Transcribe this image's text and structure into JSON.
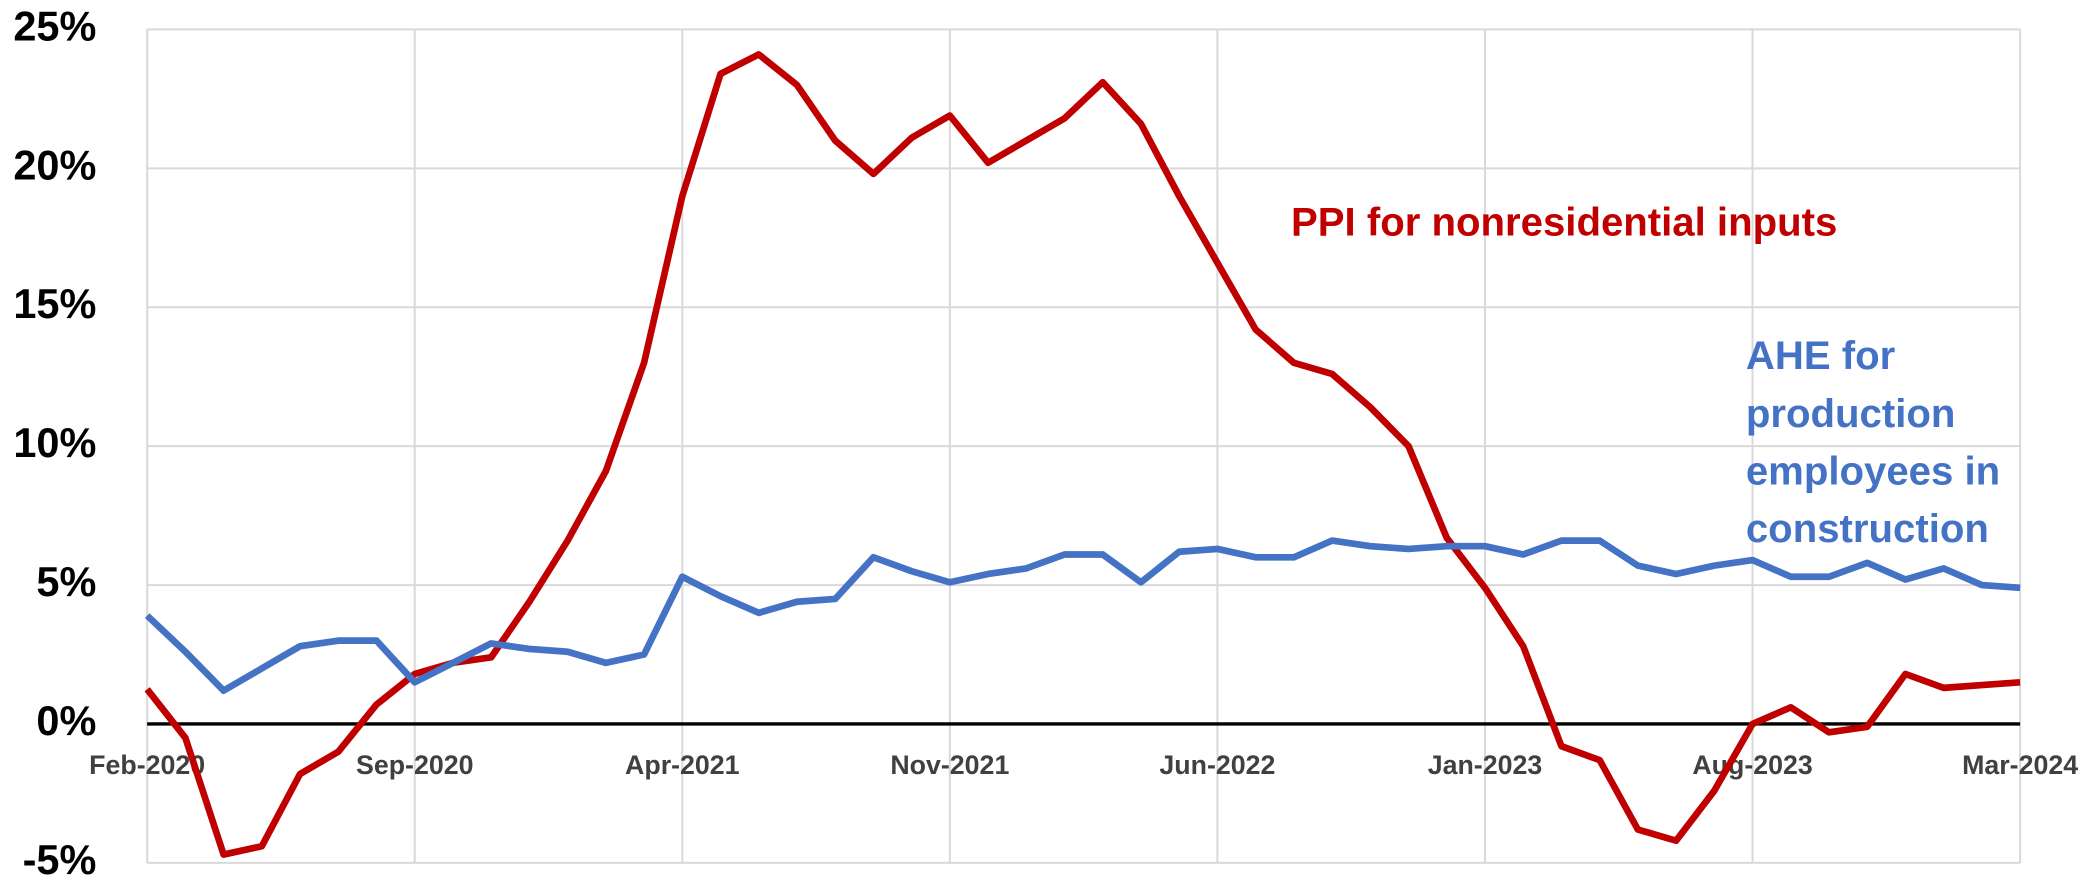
{
  "chart_data": {
    "type": "line",
    "categories": [
      "Feb-2020",
      null,
      null,
      null,
      null,
      null,
      null,
      "Sep-2020",
      null,
      null,
      null,
      null,
      null,
      null,
      "Apr-2021",
      null,
      null,
      null,
      null,
      null,
      null,
      "Nov-2021",
      null,
      null,
      null,
      null,
      null,
      null,
      "Jun-2022",
      null,
      null,
      null,
      null,
      null,
      null,
      "Jan-2023",
      null,
      null,
      null,
      null,
      null,
      null,
      "Aug-2023",
      null,
      null,
      null,
      null,
      null,
      null,
      "Mar-2024"
    ],
    "series": [
      {
        "name": "PPI for nonresidential inputs",
        "color": "#c00000",
        "values": [
          1.25,
          -0.5,
          -4.7,
          -4.4,
          -1.8,
          -1.0,
          0.7,
          1.8,
          2.2,
          2.4,
          4.4,
          6.6,
          9.1,
          13.0,
          19.0,
          23.4,
          24.1,
          23.0,
          21.0,
          19.8,
          21.1,
          21.9,
          20.2,
          21.0,
          21.8,
          23.1,
          21.6,
          19.0,
          16.6,
          14.2,
          13.0,
          12.6,
          11.4,
          10.0,
          6.7,
          4.9,
          2.8,
          -0.8,
          -1.3,
          -3.8,
          -4.2,
          -2.4,
          0.0,
          0.6,
          -0.3,
          -0.1,
          1.8,
          1.3,
          1.4,
          1.5
        ]
      },
      {
        "name": "AHE for production employees in construction",
        "color": "#4472c4",
        "values": [
          3.9,
          2.6,
          1.2,
          2.0,
          2.8,
          3.0,
          3.0,
          1.5,
          2.2,
          2.9,
          2.7,
          2.6,
          2.2,
          2.5,
          5.3,
          4.6,
          4.0,
          4.4,
          4.5,
          6.0,
          5.5,
          5.1,
          5.4,
          5.6,
          6.1,
          6.1,
          5.1,
          6.2,
          6.3,
          6.0,
          6.0,
          6.6,
          6.4,
          6.3,
          6.4,
          6.4,
          6.1,
          6.6,
          6.6,
          5.7,
          5.4,
          5.7,
          5.9,
          5.3,
          5.3,
          5.8,
          5.2,
          5.6,
          5.0,
          4.9
        ]
      }
    ],
    "ylim": [
      -5,
      25
    ],
    "yticks": [
      {
        "value": -5,
        "label": "-5%"
      },
      {
        "value": 0,
        "label": "0%"
      },
      {
        "value": 5,
        "label": "5%"
      },
      {
        "value": 10,
        "label": "10%"
      },
      {
        "value": 15,
        "label": "15%"
      },
      {
        "value": 20,
        "label": "20%"
      },
      {
        "value": 25,
        "label": "25%"
      }
    ],
    "grid": true
  }
}
